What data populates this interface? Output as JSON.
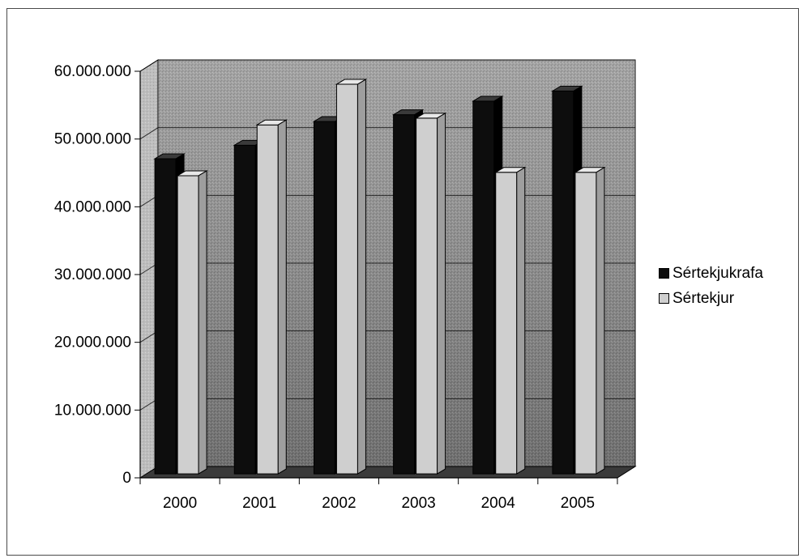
{
  "chart_data": {
    "type": "bar",
    "categories": [
      "2000",
      "2001",
      "2002",
      "2003",
      "2004",
      "2005"
    ],
    "series": [
      {
        "name": "Sértekjukrafa",
        "values": [
          46500000,
          48500000,
          52000000,
          53000000,
          55000000,
          56500000
        ]
      },
      {
        "name": "Sértekjur",
        "values": [
          44000000,
          51500000,
          57500000,
          52500000,
          44500000,
          44500000
        ]
      }
    ],
    "yticks": [
      "0",
      "10.000.000",
      "20.000.000",
      "30.000.000",
      "40.000.000",
      "50.000.000",
      "60.000.000"
    ],
    "ylim": [
      0,
      60000000
    ],
    "grid": true,
    "legend_position": "right",
    "three_d": true
  },
  "colors": {
    "series1": "#0d0d0d",
    "series2": "#cfcfcf",
    "back_wall": "#9a9a9a",
    "side_wall": "#b8b8b8",
    "floor": "#3a3a3a"
  }
}
